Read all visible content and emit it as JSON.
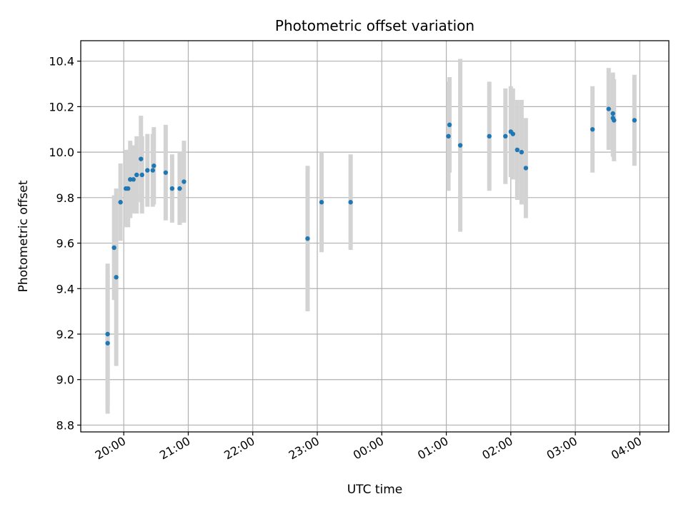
{
  "chart_data": {
    "type": "scatter",
    "title": "Photometric offset variation",
    "xlabel": "UTC time",
    "ylabel": "Photometric offset",
    "x_ticks": [
      "20:00",
      "21:00",
      "22:00",
      "23:00",
      "00:00",
      "01:00",
      "02:00",
      "03:00",
      "04:00"
    ],
    "y_ticks": [
      "8.8",
      "9.0",
      "9.2",
      "9.4",
      "9.6",
      "9.8",
      "10.0",
      "10.2",
      "10.4"
    ],
    "xlim": [
      "19:20",
      "04:27"
    ],
    "ylim": [
      8.77,
      10.49
    ],
    "grid": true,
    "colors": {
      "point": "#1f77b4",
      "errorbar": "#d3d3d3",
      "grid": "#b0b0b0"
    },
    "series": [
      {
        "points": [
          {
            "x": "19:45",
            "y": 9.2,
            "yerr": 0.31
          },
          {
            "x": "19:45",
            "y": 9.16,
            "yerr": 0.31
          },
          {
            "x": "19:51",
            "y": 9.58,
            "yerr": 0.23
          },
          {
            "x": "19:53",
            "y": 9.45,
            "yerr": 0.39
          },
          {
            "x": "19:57",
            "y": 9.78,
            "yerr": 0.17
          },
          {
            "x": "20:02",
            "y": 9.84,
            "yerr": 0.17
          },
          {
            "x": "20:04",
            "y": 9.84,
            "yerr": 0.17
          },
          {
            "x": "20:06",
            "y": 9.88,
            "yerr": 0.17
          },
          {
            "x": "20:09",
            "y": 9.88,
            "yerr": 0.15
          },
          {
            "x": "20:12",
            "y": 9.9,
            "yerr": 0.17
          },
          {
            "x": "20:16",
            "y": 9.97,
            "yerr": 0.19
          },
          {
            "x": "20:17",
            "y": 9.9,
            "yerr": 0.17
          },
          {
            "x": "20:22",
            "y": 9.92,
            "yerr": 0.16
          },
          {
            "x": "20:27",
            "y": 9.92,
            "yerr": 0.16
          },
          {
            "x": "20:28",
            "y": 9.94,
            "yerr": 0.17
          },
          {
            "x": "20:39",
            "y": 9.91,
            "yerr": 0.21
          },
          {
            "x": "20:45",
            "y": 9.84,
            "yerr": 0.15
          },
          {
            "x": "20:52",
            "y": 9.84,
            "yerr": 0.16
          },
          {
            "x": "20:56",
            "y": 9.87,
            "yerr": 0.18
          },
          {
            "x": "22:51",
            "y": 9.62,
            "yerr": 0.32
          },
          {
            "x": "23:04",
            "y": 9.78,
            "yerr": 0.22
          },
          {
            "x": "23:31",
            "y": 9.78,
            "yerr": 0.21
          },
          {
            "x": "01:02",
            "y": 10.07,
            "yerr": 0.24
          },
          {
            "x": "01:03",
            "y": 10.12,
            "yerr": 0.21
          },
          {
            "x": "01:13",
            "y": 10.03,
            "yerr": 0.38
          },
          {
            "x": "01:40",
            "y": 10.07,
            "yerr": 0.24
          },
          {
            "x": "01:55",
            "y": 10.07,
            "yerr": 0.21
          },
          {
            "x": "02:00",
            "y": 10.09,
            "yerr": 0.2
          },
          {
            "x": "02:02",
            "y": 10.08,
            "yerr": 0.2
          },
          {
            "x": "02:06",
            "y": 10.01,
            "yerr": 0.22
          },
          {
            "x": "02:10",
            "y": 10.0,
            "yerr": 0.23
          },
          {
            "x": "02:14",
            "y": 9.93,
            "yerr": 0.22
          },
          {
            "x": "03:16",
            "y": 10.1,
            "yerr": 0.19
          },
          {
            "x": "03:31",
            "y": 10.19,
            "yerr": 0.18
          },
          {
            "x": "03:35",
            "y": 10.17,
            "yerr": 0.18
          },
          {
            "x": "03:35",
            "y": 10.15,
            "yerr": 0.17
          },
          {
            "x": "03:36",
            "y": 10.14,
            "yerr": 0.18
          },
          {
            "x": "03:55",
            "y": 10.14,
            "yerr": 0.2
          }
        ]
      }
    ]
  }
}
